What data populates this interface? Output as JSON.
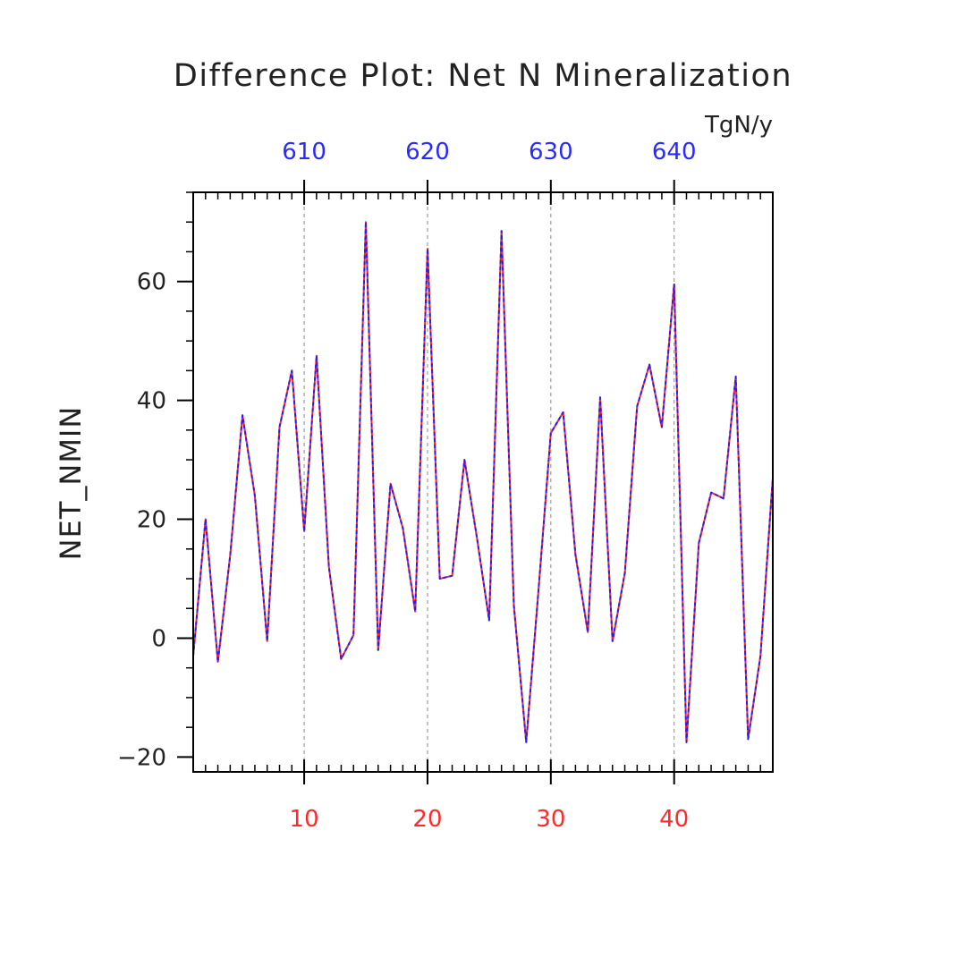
{
  "chart_data": {
    "type": "line",
    "title": "Difference Plot: Net N Mineralization",
    "ylabel": "NET_NMIN",
    "units": "TgN/y",
    "xlim": [
      1,
      48
    ],
    "ylim": [
      -22.5,
      75
    ],
    "y_ticks": [
      -20,
      0,
      20,
      40,
      60
    ],
    "y_tick_labels": [
      "−20",
      "0",
      "20",
      "40",
      "60"
    ],
    "x_bottom_ticks": [
      10,
      20,
      30,
      40
    ],
    "x_bottom_tick_labels": [
      "10",
      "20",
      "30",
      "40"
    ],
    "x_bottom_color": "#ff2a2a",
    "x_top_ticks": [
      10,
      20,
      30,
      40
    ],
    "x_top_tick_labels": [
      "610",
      "620",
      "630",
      "640"
    ],
    "x_top_color": "#2a2aff",
    "grid": "vertical-dashed",
    "series": [
      {
        "color": "#ff2020",
        "style": "solid",
        "x": [
          1,
          2,
          3,
          4,
          5,
          6,
          7,
          8,
          9,
          10,
          11,
          12,
          13,
          14,
          15,
          16,
          17,
          18,
          19,
          20,
          21,
          22,
          23,
          24,
          25,
          26,
          27,
          28,
          29,
          30,
          31,
          32,
          33,
          34,
          35,
          36,
          37,
          38,
          39,
          40,
          41,
          42,
          43,
          44,
          45,
          46,
          47,
          48
        ],
        "y": [
          -3,
          20,
          -4,
          14,
          37.5,
          24,
          -0.5,
          35.5,
          45,
          18,
          47.5,
          12,
          -3.5,
          0.5,
          70,
          -2,
          26,
          18.5,
          4.5,
          65.5,
          10,
          10.5,
          30,
          17,
          3,
          68.5,
          5.5,
          -17.5,
          8,
          34.5,
          38,
          14,
          1,
          40.5,
          -0.5,
          11,
          39,
          46,
          35.5,
          59.5,
          -17.5,
          16,
          24.5,
          23.5,
          44,
          -17,
          -3,
          27
        ]
      },
      {
        "color": "#2020ff",
        "style": "dashed",
        "x": [
          1,
          2,
          3,
          4,
          5,
          6,
          7,
          8,
          9,
          10,
          11,
          12,
          13,
          14,
          15,
          16,
          17,
          18,
          19,
          20,
          21,
          22,
          23,
          24,
          25,
          26,
          27,
          28,
          29,
          30,
          31,
          32,
          33,
          34,
          35,
          36,
          37,
          38,
          39,
          40,
          41,
          42,
          43,
          44,
          45,
          46,
          47,
          48
        ],
        "y": [
          -3,
          20,
          -4,
          14,
          37.5,
          24,
          -0.5,
          35.5,
          45,
          18,
          47.5,
          12,
          -3.5,
          0.5,
          70,
          -2,
          26,
          18.5,
          4.5,
          65.5,
          10,
          10.5,
          30,
          17,
          3,
          68.5,
          5.5,
          -17.5,
          8,
          34.5,
          38,
          14,
          1,
          40.5,
          -0.5,
          11,
          39,
          46,
          35.5,
          59.5,
          -17.5,
          16,
          24.5,
          23.5,
          44,
          -17,
          -3,
          27
        ]
      }
    ]
  }
}
